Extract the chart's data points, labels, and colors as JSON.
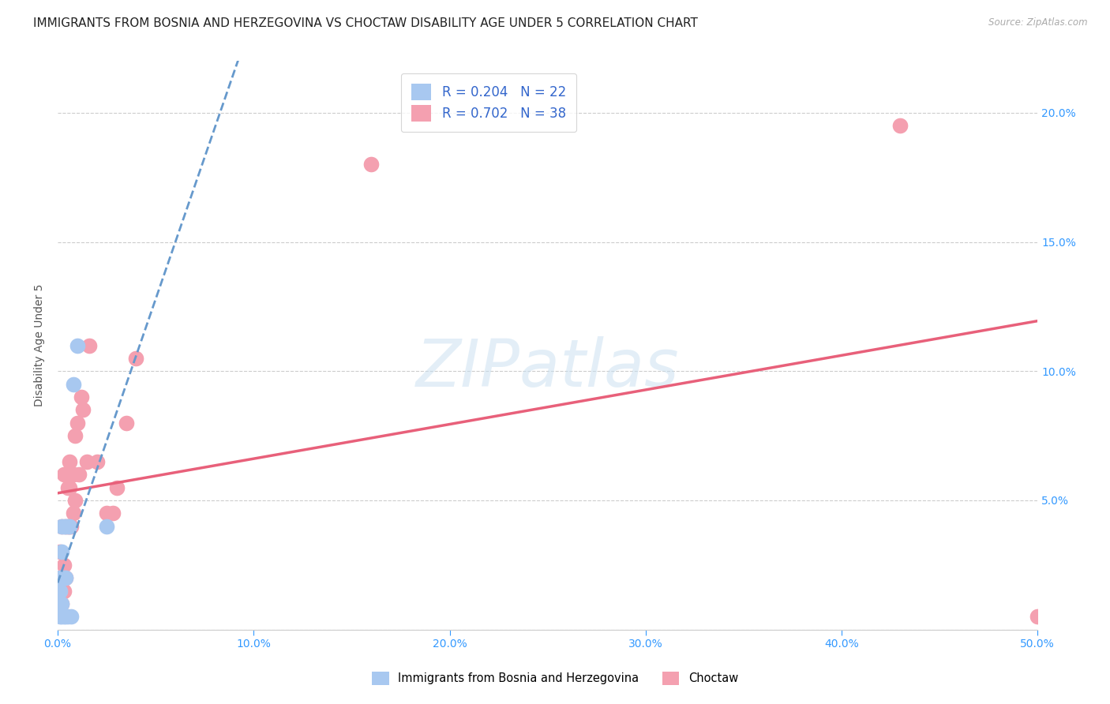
{
  "title": "IMMIGRANTS FROM BOSNIA AND HERZEGOVINA VS CHOCTAW DISABILITY AGE UNDER 5 CORRELATION CHART",
  "source": "Source: ZipAtlas.com",
  "ylabel": "Disability Age Under 5",
  "legend_bosnia_r": "R = 0.204",
  "legend_bosnia_n": "N = 22",
  "legend_choctaw_r": "R = 0.702",
  "legend_choctaw_n": "N = 38",
  "legend_label_1": "Immigrants from Bosnia and Herzegovina",
  "legend_label_2": "Choctaw",
  "watermark": "ZIPatlas",
  "xlim": [
    0.0,
    0.5
  ],
  "ylim": [
    0.0,
    0.22
  ],
  "bosnia_x": [
    0.001,
    0.001,
    0.001,
    0.001,
    0.002,
    0.002,
    0.002,
    0.002,
    0.002,
    0.003,
    0.003,
    0.003,
    0.004,
    0.004,
    0.004,
    0.005,
    0.005,
    0.006,
    0.007,
    0.008,
    0.01,
    0.025
  ],
  "bosnia_y": [
    0.005,
    0.01,
    0.015,
    0.02,
    0.005,
    0.01,
    0.02,
    0.03,
    0.04,
    0.005,
    0.02,
    0.04,
    0.005,
    0.02,
    0.04,
    0.005,
    0.04,
    0.04,
    0.005,
    0.095,
    0.11,
    0.04
  ],
  "choctaw_x": [
    0.001,
    0.001,
    0.001,
    0.002,
    0.002,
    0.002,
    0.003,
    0.003,
    0.003,
    0.004,
    0.004,
    0.004,
    0.005,
    0.005,
    0.006,
    0.006,
    0.006,
    0.007,
    0.007,
    0.008,
    0.008,
    0.009,
    0.009,
    0.01,
    0.011,
    0.012,
    0.013,
    0.015,
    0.016,
    0.02,
    0.025,
    0.028,
    0.03,
    0.035,
    0.04,
    0.16,
    0.43,
    0.5
  ],
  "choctaw_y": [
    0.01,
    0.02,
    0.03,
    0.01,
    0.02,
    0.04,
    0.015,
    0.025,
    0.06,
    0.02,
    0.04,
    0.06,
    0.04,
    0.055,
    0.04,
    0.055,
    0.065,
    0.04,
    0.06,
    0.045,
    0.06,
    0.05,
    0.075,
    0.08,
    0.06,
    0.09,
    0.085,
    0.065,
    0.11,
    0.065,
    0.045,
    0.045,
    0.055,
    0.08,
    0.105,
    0.18,
    0.195,
    0.005
  ],
  "bosnia_color": "#a8c8f0",
  "choctaw_color": "#f4a0b0",
  "bosnia_line_color": "#6699cc",
  "choctaw_line_color": "#e8607a",
  "grid_color": "#cccccc",
  "background_color": "#ffffff",
  "title_fontsize": 11,
  "axis_fontsize": 10,
  "tick_fontsize": 10
}
